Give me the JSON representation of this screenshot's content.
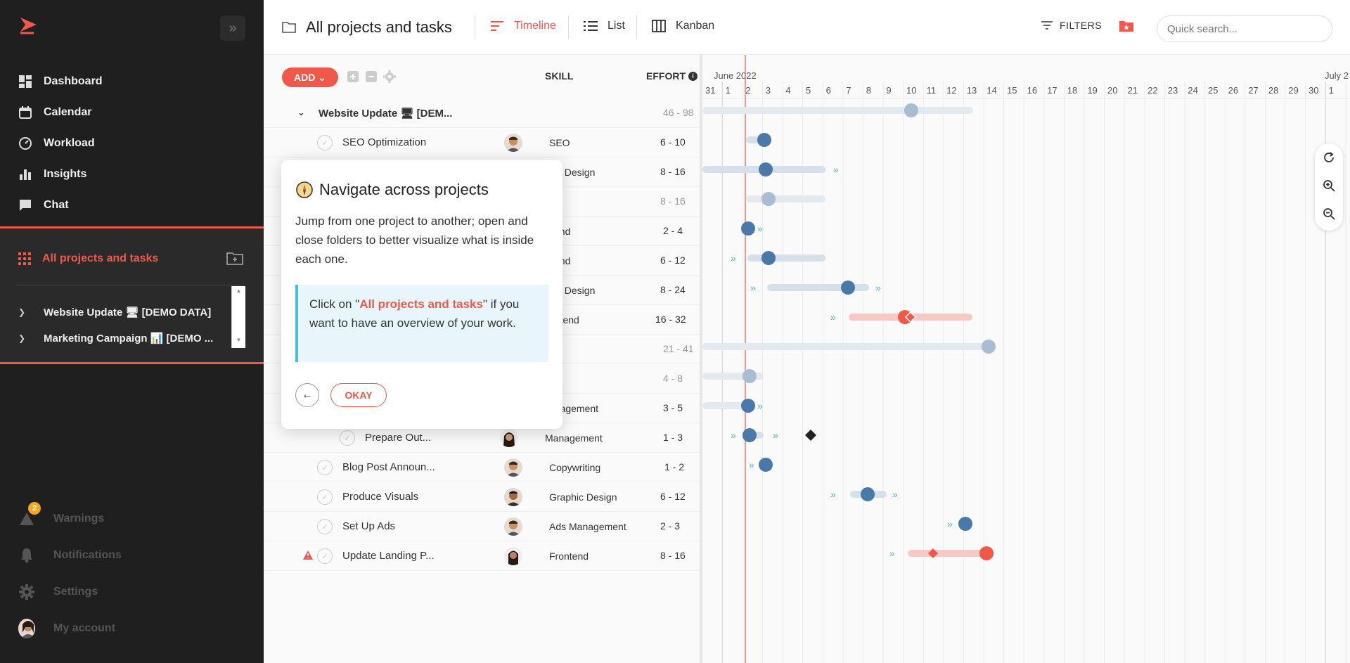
{
  "sidebar": {
    "nav": [
      {
        "label": "Dashboard",
        "icon": "dashboard-icon"
      },
      {
        "label": "Calendar",
        "icon": "calendar-icon"
      },
      {
        "label": "Workload",
        "icon": "gauge-icon"
      },
      {
        "label": "Insights",
        "icon": "bar-chart-icon"
      },
      {
        "label": "Chat",
        "icon": "chat-icon"
      }
    ],
    "all_projects_label": "All projects and tasks",
    "tree": [
      {
        "label": "Website Update 🖥 [DEMO DATA]"
      },
      {
        "label": "Marketing Campaign 📊 [DEMO ..."
      }
    ],
    "bottom": {
      "warnings_label": "Warnings",
      "warnings_count": "2",
      "notifications_label": "Notifications",
      "settings_label": "Settings",
      "account_label": "My account"
    }
  },
  "header": {
    "title": "All projects and tasks",
    "views": {
      "timeline": "Timeline",
      "list": "List",
      "kanban": "Kanban"
    },
    "filters_label": "FILTERS",
    "search_placeholder": "Quick search..."
  },
  "list": {
    "add_label": "ADD",
    "columns": {
      "skill": "SKILL",
      "effort": "EFFORT"
    },
    "rows": [
      {
        "name": "Website Update 🖥 [DEM...",
        "skill": "",
        "effort": "46 - 98",
        "group": true
      },
      {
        "name": "SEO Optimization",
        "skill": "SEO",
        "effort": "6 - 10"
      },
      {
        "name": "",
        "skill": "/UI Design",
        "effort": "8 - 16"
      },
      {
        "name": "",
        "skill": "",
        "effort": "8 - 16"
      },
      {
        "name": "",
        "skill": "kend",
        "effort": "2 - 4"
      },
      {
        "name": "",
        "skill": "kend",
        "effort": "6 - 12"
      },
      {
        "name": "",
        "skill": "/UI Design",
        "effort": "8 - 24"
      },
      {
        "name": "",
        "skill": "ontend",
        "effort": "16 - 32"
      },
      {
        "name": "",
        "skill": "",
        "effort": "21 - 41"
      },
      {
        "name": "",
        "skill": "",
        "effort": "4 - 8"
      },
      {
        "name": "",
        "skill": "anagement",
        "effort": "3 - 5"
      },
      {
        "name": "Prepare Out...",
        "skill": "Management",
        "effort": "1 - 3"
      },
      {
        "name": "Blog Post Announ...",
        "skill": "Copywriting",
        "effort": "1 - 2"
      },
      {
        "name": "Produce Visuals",
        "skill": "Graphic Design",
        "effort": "6 - 12"
      },
      {
        "name": "Set Up Ads",
        "skill": "Ads Management",
        "effort": "2 - 3"
      },
      {
        "name": "Update Landing P...",
        "skill": "Frontend",
        "effort": "8 - 16",
        "warning": true
      }
    ]
  },
  "timeline": {
    "month_label": "June 2022",
    "next_month_label": "July 2",
    "days": [
      "31",
      "1",
      "2",
      "3",
      "4",
      "5",
      "6",
      "7",
      "8",
      "9",
      "10",
      "11",
      "12",
      "13",
      "14",
      "15",
      "16",
      "17",
      "18",
      "19",
      "20",
      "21",
      "22",
      "23",
      "24",
      "25",
      "26",
      "27",
      "28",
      "29",
      "30",
      "1"
    ]
  },
  "popover": {
    "title": "Navigate across projects",
    "body": "Jump from one project to another; open and close folders to better visualize what is inside each one.",
    "note_pre": "Click on \"",
    "note_link": "All projects and tasks",
    "note_post": "\" if you want to have an overview of your work.",
    "ok_label": "OKAY"
  },
  "colors": {
    "accent": "#f0584a",
    "bar_blue": "#4a78a8",
    "bar_light": "#d6e0ea",
    "alert": "#f0584a"
  }
}
